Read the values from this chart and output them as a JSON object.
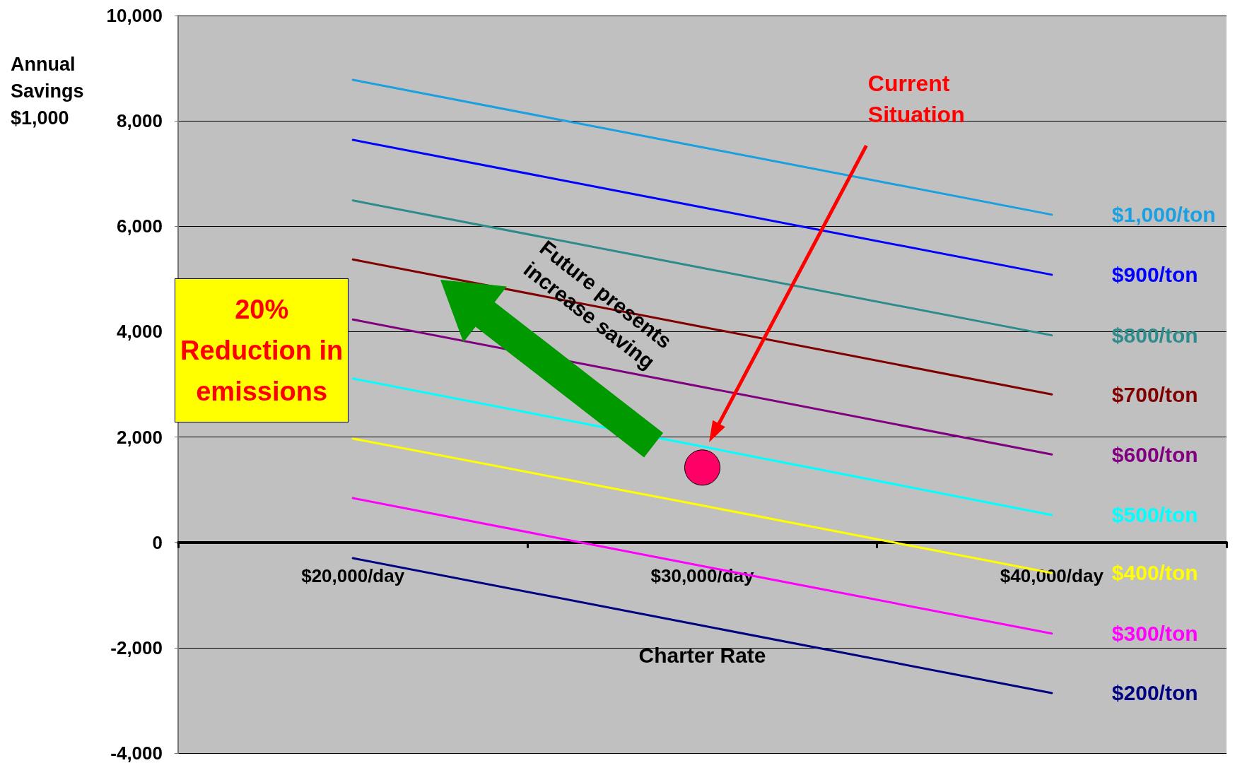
{
  "chart_data": {
    "type": "line",
    "xlabel": "Charter Rate",
    "ylabel": "Annual Savings $1,000",
    "categories": [
      "$20,000/day",
      "$30,000/day",
      "$40,000/day"
    ],
    "series": [
      {
        "name": "$1,000/ton",
        "color": "#1a9fe0",
        "values": [
          8780,
          7500,
          6220
        ]
      },
      {
        "name": "$900/ton",
        "color": "#0000ff",
        "values": [
          7640,
          6360,
          5080
        ]
      },
      {
        "name": "$800/ton",
        "color": "#2e8b8b",
        "values": [
          6490,
          5210,
          3930
        ]
      },
      {
        "name": "$700/ton",
        "color": "#800000",
        "values": [
          5370,
          4090,
          2810
        ]
      },
      {
        "name": "$600/ton",
        "color": "#800080",
        "values": [
          4230,
          2950,
          1670
        ]
      },
      {
        "name": "$500/ton",
        "color": "#00ffff",
        "values": [
          3110,
          1820,
          520
        ]
      },
      {
        "name": "$400/ton",
        "color": "#ffff00",
        "values": [
          1970,
          700,
          -580
        ]
      },
      {
        "name": "$300/ton",
        "color": "#ff00ff",
        "values": [
          840,
          -450,
          -1730
        ]
      },
      {
        "name": "$200/ton",
        "color": "#000080",
        "values": [
          -300,
          -1580,
          -2860
        ]
      },
      {
        "type": "scatter",
        "marker": "circle",
        "color": "#ff0066",
        "x": [
          "$30,000/day"
        ],
        "values": [
          1420
        ]
      }
    ],
    "ylim": [
      -4000,
      10000
    ],
    "yticks": [
      {
        "value": -4000,
        "label": "-4,000"
      },
      {
        "value": -2000,
        "label": "-2,000"
      },
      0,
      {
        "value": 2000,
        "label": "2,000"
      },
      {
        "value": 4000,
        "label": "4,000"
      },
      {
        "value": 6000,
        "label": "6,000"
      },
      {
        "value": 8000,
        "label": "8,000"
      },
      {
        "value": 10000,
        "label": "10,000"
      }
    ],
    "grid": "y",
    "marker": "none",
    "line_style": "solid",
    "annotations": [
      "Current Situation",
      "Future presents increase saving",
      "20% Reduction in emissions"
    ]
  }
}
